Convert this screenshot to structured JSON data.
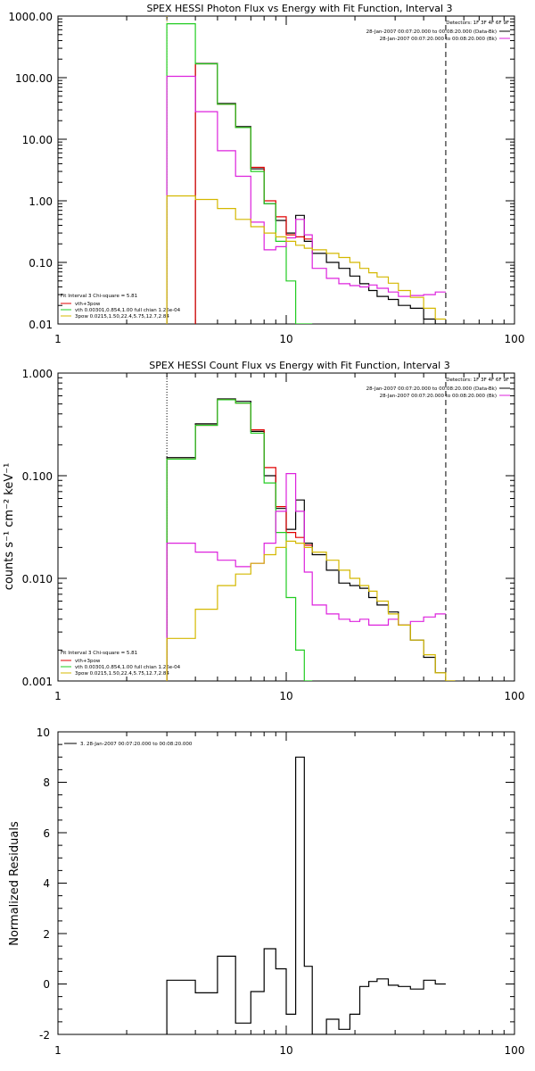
{
  "chart_data": [
    {
      "type": "line",
      "title": "SPEX HESSI Photon Flux vs Energy with Fit Function, Interval 3",
      "xscale": "log",
      "yscale": "log",
      "xlim": [
        1,
        100
      ],
      "ylim": [
        0.01,
        1000
      ],
      "xticks": [
        "1",
        "10",
        "100"
      ],
      "yticks": [
        "1000.00",
        "100.00",
        "10.00",
        "1.00",
        "0.10",
        "0.01"
      ],
      "ylabel": "",
      "vlines": [
        {
          "x": 3,
          "style": "dotted",
          "color": "#c8a800"
        },
        {
          "x": 50,
          "style": "dashed",
          "color": "#000000"
        }
      ],
      "info_lines": [
        "Detectors: 1F 3F 4F 6F 9F",
        "28-Jan-2007 00:07:20.000 to 00:08:20.000 (Data-Bk)",
        "28-Jan-2007 00:07:20.000 to 00:08:20.000 (Bk)"
      ],
      "fit_legend": {
        "header": "Fit Interval 3   Chi-square = 5.81",
        "entries": [
          {
            "label": "vth+3pow",
            "color": "#e00000"
          },
          {
            "label": "vth 0.00301,0.854,1.00   full chian 1.26e-04",
            "color": "#22cc22"
          },
          {
            "label": "3pow 0.0215,1.50,22.4,5.75,12.7,2.84",
            "color": "#d4b800"
          }
        ]
      },
      "series": [
        {
          "color": "#000000",
          "edges": [
            3,
            4,
            5,
            6,
            7,
            8,
            9,
            10,
            11,
            12,
            13,
            15,
            17,
            19,
            21,
            23,
            25,
            28,
            31,
            35,
            40,
            45,
            50
          ],
          "values": [
            null,
            170,
            38,
            16,
            3.3,
            0.9,
            0.48,
            0.3,
            0.58,
            0.22,
            0.14,
            0.1,
            0.08,
            0.06,
            0.045,
            0.035,
            0.028,
            0.025,
            0.02,
            0.018,
            0.012,
            0.0085
          ]
        },
        {
          "color": "#e00000",
          "edges": [
            3,
            4,
            5,
            6,
            7,
            8,
            9,
            10,
            11,
            12,
            13,
            15,
            17,
            19,
            21,
            23,
            25,
            28,
            31,
            35,
            40,
            45,
            50
          ],
          "values": [
            null,
            168,
            37,
            15.5,
            3.5,
            1.0,
            0.55,
            0.28,
            0.26,
            0.24,
            null,
            null,
            null,
            null,
            null,
            null,
            null,
            null,
            null,
            null,
            null,
            null
          ]
        },
        {
          "color": "#22cc22",
          "edges": [
            3,
            4,
            5,
            6,
            7,
            8,
            9,
            10,
            11,
            12,
            13
          ],
          "values": [
            750,
            168,
            37,
            15.5,
            3,
            0.9,
            0.22,
            0.05,
            0.01,
            0.008
          ]
        },
        {
          "color": "#dd22dd",
          "edges": [
            3,
            4,
            5,
            6,
            7,
            8,
            9,
            10,
            11,
            12,
            13,
            15,
            17,
            19,
            21,
            23,
            25,
            28,
            31,
            35,
            40,
            45,
            50
          ],
          "values": [
            105,
            28,
            6.5,
            2.5,
            0.45,
            0.16,
            0.18,
            0.25,
            0.5,
            0.28,
            0.08,
            0.055,
            0.045,
            0.042,
            0.04,
            0.043,
            0.038,
            0.033,
            0.028,
            0.029,
            0.03,
            0.033
          ]
        },
        {
          "color": "#d4b800",
          "edges": [
            3,
            4,
            5,
            6,
            7,
            8,
            9,
            10,
            11,
            12,
            13,
            15,
            17,
            19,
            21,
            23,
            25,
            28,
            31,
            35,
            40,
            45,
            50
          ],
          "values": [
            1.2,
            1.05,
            0.75,
            0.5,
            0.38,
            0.3,
            0.26,
            0.22,
            0.19,
            0.17,
            0.16,
            0.14,
            0.12,
            0.1,
            0.08,
            0.068,
            0.058,
            0.046,
            0.035,
            0.027,
            0.018,
            0.012
          ]
        }
      ]
    },
    {
      "type": "line",
      "title": "SPEX HESSI Count Flux vs Energy with Fit Function, Interval 3",
      "xscale": "log",
      "yscale": "log",
      "xlim": [
        1,
        100
      ],
      "ylim": [
        0.001,
        1
      ],
      "xticks": [
        "1",
        "10",
        "100"
      ],
      "yticks": [
        "1.000",
        "0.100",
        "0.010",
        "0.001"
      ],
      "ylabel": "counts s⁻¹ cm⁻² keV⁻¹",
      "vlines": [
        {
          "x": 3,
          "style": "dotted",
          "color": "#000000"
        },
        {
          "x": 50,
          "style": "dashed",
          "color": "#000000"
        }
      ],
      "info_lines": [
        "Detectors: 1F 3F 4F 6F 9F",
        "28-Jan-2007 00:07:20.000 to 00:08:20.000 (Data-Bk)",
        "28-Jan-2007 00:07:20.000 to 00:08:20.000 (Bk)"
      ],
      "fit_legend": {
        "header": "Fit Interval 3   Chi-square = 5.81",
        "entries": [
          {
            "label": "vth+3pow",
            "color": "#e00000"
          },
          {
            "label": "vth 0.00301,0.854,1.00   full chian 1.26e-04",
            "color": "#22cc22"
          },
          {
            "label": "3pow 0.0215,1.50,22.4,5.75,12.7,2.84",
            "color": "#d4b800"
          }
        ]
      },
      "series": [
        {
          "color": "#000000",
          "edges": [
            3,
            4,
            5,
            6,
            7,
            8,
            9,
            10,
            11,
            12,
            13,
            15,
            17,
            19,
            21,
            23,
            25,
            28,
            31,
            35,
            40,
            45,
            50,
            55
          ],
          "values": [
            0.15,
            0.32,
            0.56,
            0.53,
            0.27,
            0.1,
            0.048,
            0.03,
            0.058,
            0.022,
            0.017,
            0.012,
            0.009,
            0.0085,
            0.008,
            0.0065,
            0.0055,
            0.0047,
            0.0035,
            0.0025,
            0.0017,
            0.0012,
            0.001
          ]
        },
        {
          "color": "#e00000",
          "edges": [
            3,
            4,
            5,
            6,
            7,
            8,
            9,
            10,
            11,
            12,
            13
          ],
          "values": [
            0.145,
            0.31,
            0.55,
            0.51,
            0.28,
            0.12,
            0.05,
            0.028,
            0.025,
            0.021
          ]
        },
        {
          "color": "#22cc22",
          "edges": [
            3,
            4,
            5,
            6,
            7,
            8,
            9,
            10,
            11,
            12,
            13
          ],
          "values": [
            0.145,
            0.31,
            0.55,
            0.51,
            0.26,
            0.085,
            0.028,
            0.0065,
            0.002,
            0.0005
          ]
        },
        {
          "color": "#dd22dd",
          "edges": [
            3,
            4,
            5,
            6,
            7,
            8,
            9,
            10,
            11,
            12,
            13,
            15,
            17,
            19,
            21,
            23,
            25,
            28,
            31,
            35,
            40,
            45,
            50
          ],
          "values": [
            0.022,
            0.018,
            0.015,
            0.013,
            0.014,
            0.022,
            0.045,
            0.105,
            0.045,
            0.0115,
            0.0055,
            0.0045,
            0.004,
            0.0038,
            0.004,
            0.0035,
            0.0035,
            0.004,
            0.0035,
            0.0038,
            0.0042,
            0.0045
          ]
        },
        {
          "color": "#d4b800",
          "edges": [
            3,
            4,
            5,
            6,
            7,
            8,
            9,
            10,
            11,
            12,
            13,
            15,
            17,
            19,
            21,
            23,
            25,
            28,
            31,
            35,
            40,
            45,
            50,
            55
          ],
          "values": [
            0.0026,
            0.005,
            0.0085,
            0.011,
            0.014,
            0.017,
            0.02,
            0.023,
            0.022,
            0.02,
            0.018,
            0.015,
            0.012,
            0.01,
            0.0085,
            0.0075,
            0.006,
            0.0045,
            0.0035,
            0.0025,
            0.0018,
            0.0012,
            0.001
          ]
        }
      ]
    },
    {
      "type": "line",
      "title": "",
      "xscale": "log",
      "yscale": "linear",
      "xlim": [
        1,
        100
      ],
      "ylim": [
        -2,
        10
      ],
      "xticks": [
        "1",
        "10",
        "100"
      ],
      "yticks": [
        "10",
        "8",
        "6",
        "4",
        "2",
        "0",
        "-2"
      ],
      "ylabel": "Normalized Residuals",
      "legend": "3. 28-Jan-2007 00:07:20.000 to 00:08:20.000",
      "series": [
        {
          "color": "#000000",
          "edges": [
            3,
            4,
            5,
            6,
            7,
            8,
            9,
            10,
            11,
            12,
            13,
            15,
            17,
            19,
            21,
            23,
            25,
            28,
            31,
            35,
            40,
            45,
            50
          ],
          "values": [
            0.15,
            -0.35,
            1.1,
            -1.55,
            -0.3,
            1.4,
            0.6,
            -1.2,
            9.0,
            0.7,
            -2.0,
            -1.4,
            -1.8,
            -1.2,
            -0.1,
            0.1,
            0.2,
            -0.05,
            -0.1,
            -0.2,
            0.15,
            0.0
          ]
        }
      ]
    }
  ]
}
